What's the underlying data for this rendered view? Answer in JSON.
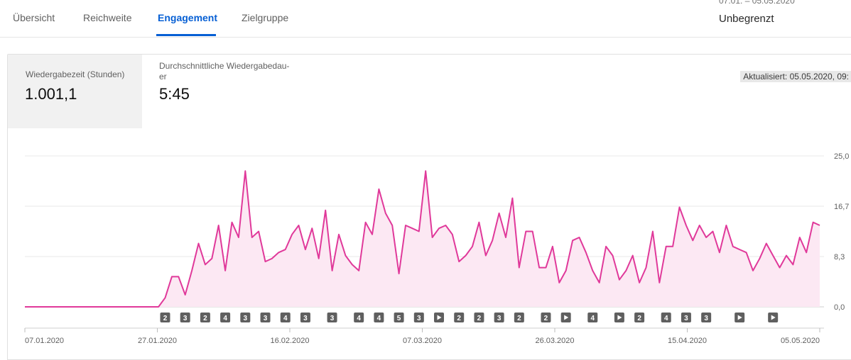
{
  "tabs": [
    {
      "label": "Übersicht"
    },
    {
      "label": "Reichweite"
    },
    {
      "label": "Engagement"
    },
    {
      "label": "Zielgruppe"
    }
  ],
  "date_range": {
    "label": "07.01. – 05.05.2020",
    "value": "Unbegrenzt"
  },
  "metrics": [
    {
      "label": "Wiedergabezeit (Stunden)",
      "value": "1.001,1"
    },
    {
      "label_line1": "Durchschnittliche Wiedergabedau-",
      "label_line2": "er",
      "value": "5:45"
    }
  ],
  "updated_label": "Aktualisiert: 05.05.2020, 09:",
  "colors": {
    "accent": "#065fd4",
    "line": "#e0399a",
    "fill": "#fce8f3",
    "marker": "#5f5f5f"
  },
  "chart_data": {
    "type": "area",
    "x_start": "07.01.2020",
    "x_end": "05.05.2020",
    "xlabels": [
      "07.01.2020",
      "27.01.2020",
      "16.02.2020",
      "07.03.2020",
      "26.03.2020",
      "15.04.2020",
      "05.05.2020"
    ],
    "yticks": [
      "25,0",
      "16,7",
      "8,3",
      "0,0"
    ],
    "ylim": [
      0,
      25
    ],
    "values": [
      0,
      0,
      0,
      0,
      0,
      0,
      0,
      0,
      0,
      0,
      0,
      0,
      0,
      0,
      0,
      0,
      0,
      0,
      0,
      0,
      0,
      1.5,
      5,
      5,
      2,
      6,
      10.5,
      7,
      8,
      13.5,
      6,
      14,
      11.5,
      22.5,
      11.5,
      12.5,
      7.5,
      8,
      9,
      9.5,
      12,
      13.5,
      9.5,
      13,
      8,
      16,
      6,
      12,
      8.5,
      7,
      6,
      14,
      12,
      19.5,
      15.5,
      13.5,
      5.5,
      13.5,
      13,
      12.5,
      22.5,
      11.5,
      13,
      13.5,
      12,
      7.5,
      8.5,
      10,
      14,
      8.5,
      11,
      15.5,
      11.5,
      18,
      6.5,
      12.5,
      12.5,
      6.5,
      6.5,
      10,
      4,
      6,
      11,
      11.5,
      9,
      6,
      4,
      10,
      8.5,
      4.5,
      6,
      8.5,
      4,
      6.5,
      12.5,
      4,
      10,
      10,
      16.5,
      13.5,
      11,
      13.5,
      11.5,
      12.5,
      9,
      13.5,
      10,
      9.5,
      9,
      6,
      8,
      10.5,
      8.5,
      6.5,
      8.5,
      7,
      11.5,
      9,
      14,
      13.5
    ],
    "markers": [
      "2",
      "3",
      "2",
      "4",
      "3",
      "3",
      "4",
      "3",
      "3",
      "4",
      "4",
      "5",
      "3",
      "play",
      "2",
      "2",
      "3",
      "2",
      "2",
      "play",
      "4",
      "play",
      "2",
      "4",
      "3",
      "3",
      "play",
      "play"
    ],
    "marker_days": [
      21,
      24,
      27,
      30,
      33,
      36,
      39,
      42,
      46,
      50,
      53,
      56,
      59,
      62,
      65,
      68,
      71,
      74,
      78,
      81,
      85,
      89,
      92,
      96,
      99,
      102,
      107,
      112
    ]
  }
}
